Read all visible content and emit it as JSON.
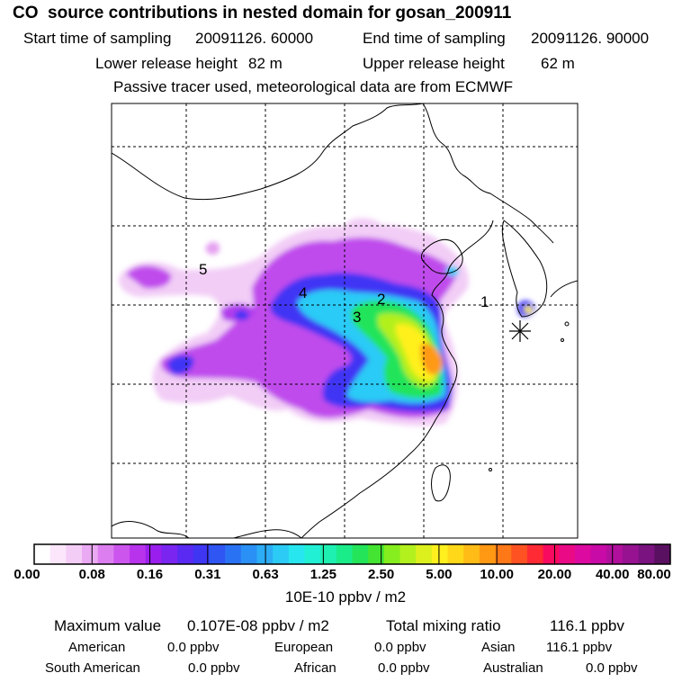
{
  "title": "CO  source contributions in nested domain for gosan_200911",
  "header": {
    "start_label": "Start time of sampling",
    "start_value": "20091126. 60000",
    "end_label": "End time of sampling",
    "end_value": "20091126. 90000",
    "lower_label": "Lower release height",
    "lower_value": "82 m",
    "upper_label": "Upper release height",
    "upper_value": "62 m",
    "note": "Passive tracer used, meteorological data are from ECMWF"
  },
  "map": {
    "region_labels": [
      "1",
      "2",
      "3",
      "4",
      "5"
    ],
    "receptor_marker": "asterisk-marker"
  },
  "colorbar": {
    "ticks": [
      "0.00",
      "0.08",
      "0.16",
      "0.31",
      "0.63",
      "1.25",
      "2.50",
      "5.00",
      "10.00",
      "20.00",
      "40.00",
      "80.00"
    ],
    "units": "10E-10 ppbv / m2",
    "colors": [
      "#ffffff",
      "#fbe6fc",
      "#f4cdf7",
      "#eaa9f3",
      "#dc7ef0",
      "#cc55ee",
      "#b833ec",
      "#9a1fee",
      "#7a25f0",
      "#5a2af2",
      "#3f36f4",
      "#2f55f3",
      "#2a72f4",
      "#2a90f5",
      "#2cadf6",
      "#2ccbf6",
      "#28e6ef",
      "#22f0d4",
      "#1ef0b2",
      "#1bec8a",
      "#24e45a",
      "#44e432",
      "#86ee1e",
      "#b2f01e",
      "#dcf01e",
      "#fff01e",
      "#ffd81a",
      "#ffbb16",
      "#ff9914",
      "#ff7818",
      "#ff5222",
      "#ff2a34",
      "#f80a60",
      "#ea0a86",
      "#dc0aa0",
      "#c80aa6",
      "#b0109c",
      "#961290",
      "#7a1280",
      "#5a1060"
    ]
  },
  "stats": {
    "max_label": "Maximum value",
    "max_value": "0.107E-08 ppbv / m2",
    "total_label": "Total mixing ratio",
    "total_value": "116.1 ppbv",
    "american_label": "American",
    "american_value": "0.0 ppbv",
    "european_label": "European",
    "european_value": "0.0 ppbv",
    "asian_label": "Asian",
    "asian_value": "116.1 ppbv",
    "south_american_label": "South American",
    "south_american_value": "0.0 ppbv",
    "african_label": "African",
    "african_value": "0.0 ppbv",
    "australian_label": "Australian",
    "australian_value": "0.0 ppbv"
  }
}
